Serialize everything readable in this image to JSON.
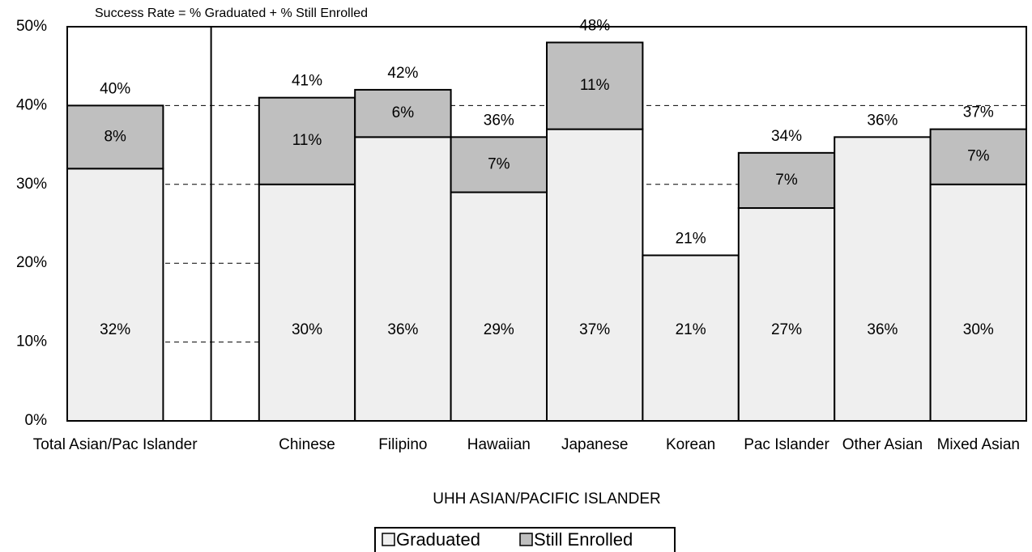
{
  "chart_data": {
    "type": "stacked_bar",
    "annotation": "Success Rate = % Graduated + % Still Enrolled",
    "x_label": "UHH ASIAN/PACIFIC ISLANDER",
    "categories": [
      "Total Asian/Pac Islander",
      null,
      "Chinese",
      "Filipino",
      "Hawaiian",
      "Japanese",
      "Korean",
      "Pac Islander",
      "Other Asian",
      "Mixed Asian"
    ],
    "series": [
      {
        "name": "Graduated",
        "color": "#efefef",
        "values": [
          32,
          null,
          30,
          36,
          29,
          37,
          21,
          27,
          36,
          30
        ],
        "value_labels": [
          "32%",
          null,
          "30%",
          "36%",
          "29%",
          "37%",
          "21%",
          "27%",
          "36%",
          "30%"
        ]
      },
      {
        "name": "Still Enrolled",
        "color": "#bfbfbf",
        "values": [
          8,
          null,
          11,
          6,
          7,
          11,
          null,
          7,
          null,
          7
        ],
        "value_labels": [
          "8%",
          null,
          "11%",
          "6%",
          "7%",
          "11%",
          null,
          "7%",
          null,
          "7%"
        ]
      }
    ],
    "totals": {
      "values": [
        40,
        null,
        41,
        42,
        36,
        48,
        21,
        34,
        36,
        37
      ],
      "value_labels": [
        "40%",
        null,
        "41%",
        "42%",
        "36%",
        "48%",
        "21%",
        "34%",
        "36%",
        "37%"
      ]
    },
    "ylim": [
      0,
      50
    ],
    "yticks": [
      {
        "value": 0,
        "label": "0%"
      },
      {
        "value": 10,
        "label": "10%"
      },
      {
        "value": 20,
        "label": "20%"
      },
      {
        "value": 30,
        "label": "30%"
      },
      {
        "value": 40,
        "label": "40%"
      },
      {
        "value": 50,
        "label": "50%"
      }
    ],
    "grid": true,
    "legend": "bottom"
  }
}
